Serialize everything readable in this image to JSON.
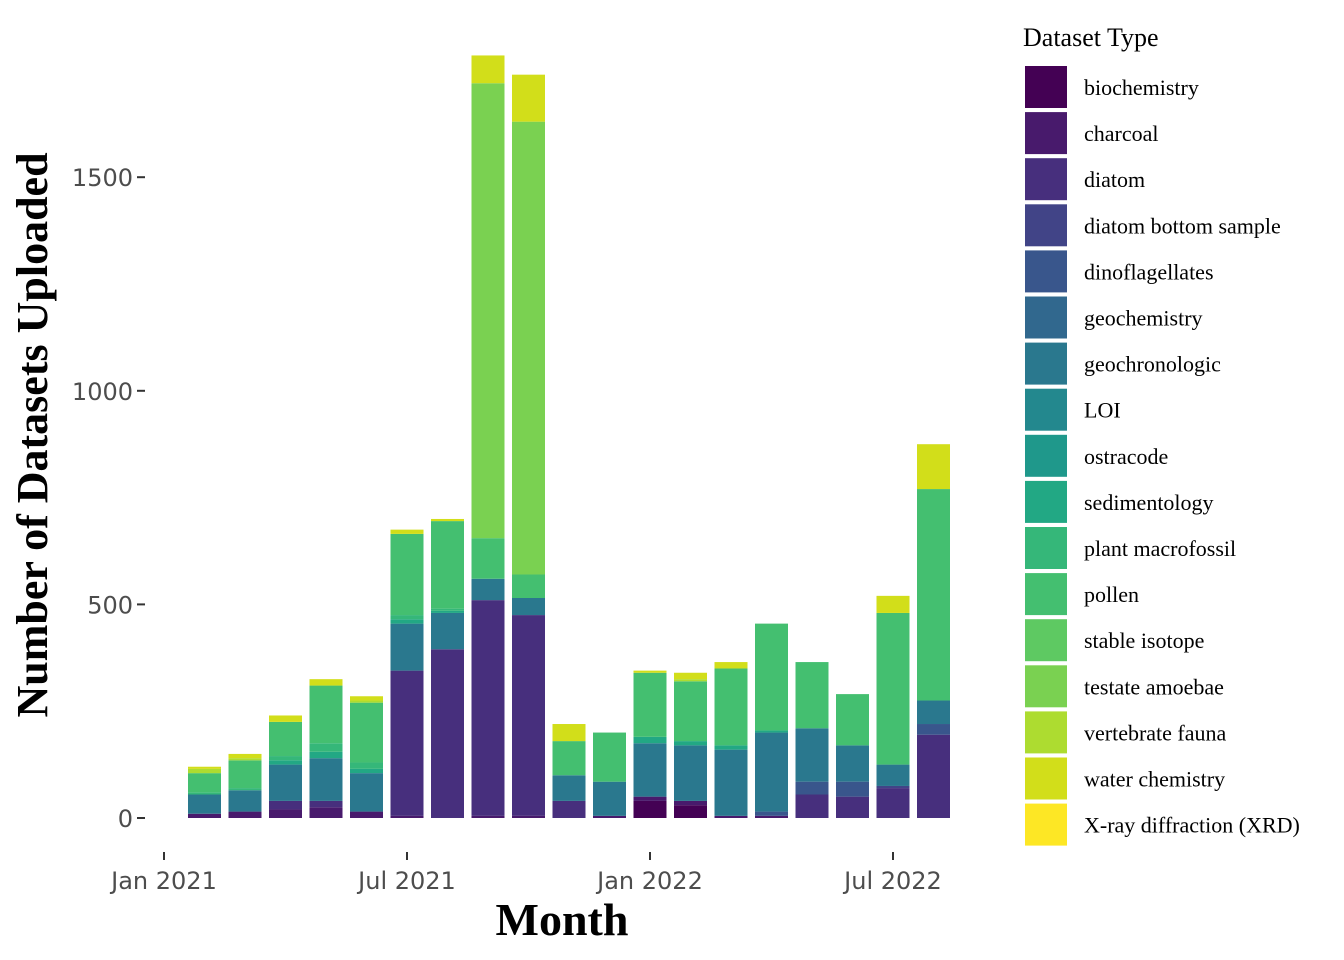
{
  "chart_data": {
    "type": "bar",
    "stacked": true,
    "xlabel": "Month",
    "ylabel": "Number of Datasets Uploaded",
    "ylim": [
      -60,
      1800
    ],
    "y_ticks": [
      0,
      500,
      1000,
      1500
    ],
    "x_ticks": [
      {
        "label": "Jan 2021",
        "date": "2021-01"
      },
      {
        "label": "Jul 2021",
        "date": "2021-07"
      },
      {
        "label": "Jan 2022",
        "date": "2022-01"
      },
      {
        "label": "Jul 2022",
        "date": "2022-07"
      }
    ],
    "categories": [
      "2021-02",
      "2021-03",
      "2021-04",
      "2021-05",
      "2021-06",
      "2021-07",
      "2021-08",
      "2021-09",
      "2021-10",
      "2021-11",
      "2021-12",
      "2022-01",
      "2022-02",
      "2022-03",
      "2022-04",
      "2022-05",
      "2022-06",
      "2022-07",
      "2022-08"
    ],
    "legend": {
      "title": "Dataset Type",
      "position": "right"
    },
    "grid": false,
    "series": [
      {
        "name": "biochemistry",
        "color": "#440154",
        "values": [
          0,
          0,
          0,
          0,
          0,
          0,
          0,
          0,
          0,
          0,
          0,
          40,
          30,
          0,
          0,
          0,
          0,
          0,
          0
        ]
      },
      {
        "name": "charcoal",
        "color": "#481a6c",
        "values": [
          10,
          15,
          20,
          25,
          15,
          5,
          0,
          5,
          5,
          0,
          5,
          10,
          10,
          5,
          5,
          0,
          0,
          0,
          0
        ]
      },
      {
        "name": "diatom",
        "color": "#472f7d",
        "values": [
          0,
          0,
          20,
          15,
          0,
          340,
          395,
          505,
          470,
          40,
          0,
          0,
          0,
          0,
          0,
          55,
          50,
          70,
          195
        ]
      },
      {
        "name": "diatom bottom sample",
        "color": "#414487",
        "values": [
          0,
          0,
          0,
          0,
          0,
          0,
          0,
          0,
          0,
          0,
          0,
          0,
          0,
          0,
          0,
          0,
          0,
          5,
          0
        ]
      },
      {
        "name": "dinoflagellates",
        "color": "#39568c",
        "values": [
          0,
          0,
          0,
          0,
          0,
          0,
          0,
          0,
          0,
          0,
          0,
          0,
          0,
          0,
          10,
          30,
          35,
          0,
          25
        ]
      },
      {
        "name": "geochemistry",
        "color": "#31688e",
        "values": [
          0,
          0,
          0,
          0,
          0,
          0,
          0,
          0,
          0,
          0,
          0,
          0,
          0,
          0,
          0,
          0,
          0,
          0,
          0
        ]
      },
      {
        "name": "geochronologic",
        "color": "#2a788e",
        "values": [
          45,
          50,
          85,
          100,
          90,
          110,
          85,
          50,
          40,
          60,
          80,
          125,
          130,
          155,
          185,
          125,
          85,
          50,
          55
        ]
      },
      {
        "name": "LOI",
        "color": "#23888e",
        "values": [
          0,
          0,
          0,
          0,
          0,
          0,
          0,
          0,
          0,
          0,
          0,
          0,
          0,
          0,
          0,
          0,
          0,
          0,
          0
        ]
      },
      {
        "name": "ostracode",
        "color": "#1f988b",
        "values": [
          0,
          0,
          0,
          0,
          0,
          0,
          0,
          0,
          0,
          0,
          0,
          0,
          0,
          0,
          0,
          0,
          0,
          0,
          0
        ]
      },
      {
        "name": "sedimentology",
        "color": "#22a884",
        "values": [
          0,
          0,
          10,
          15,
          10,
          10,
          5,
          0,
          0,
          0,
          0,
          15,
          10,
          10,
          5,
          0,
          0,
          0,
          0
        ]
      },
      {
        "name": "plant macrofossil",
        "color": "#35b779",
        "values": [
          5,
          5,
          10,
          20,
          15,
          10,
          5,
          0,
          0,
          0,
          0,
          0,
          0,
          0,
          0,
          0,
          0,
          0,
          0
        ]
      },
      {
        "name": "pollen",
        "color": "#44bf70",
        "values": [
          45,
          65,
          80,
          135,
          140,
          190,
          205,
          95,
          55,
          80,
          115,
          150,
          140,
          180,
          250,
          155,
          120,
          355,
          495
        ]
      },
      {
        "name": "stable isotope",
        "color": "#5ec962",
        "values": [
          0,
          0,
          0,
          0,
          0,
          0,
          0,
          0,
          0,
          0,
          0,
          0,
          0,
          0,
          0,
          0,
          0,
          0,
          0
        ]
      },
      {
        "name": "testate amoebae",
        "color": "#7ad151",
        "values": [
          0,
          0,
          0,
          0,
          0,
          0,
          0,
          1065,
          1060,
          0,
          0,
          0,
          0,
          0,
          0,
          0,
          0,
          0,
          0
        ]
      },
      {
        "name": "vertebrate fauna",
        "color": "#addc30",
        "values": [
          10,
          5,
          0,
          0,
          5,
          0,
          0,
          0,
          0,
          0,
          0,
          0,
          5,
          0,
          0,
          0,
          0,
          0,
          0
        ]
      },
      {
        "name": "water chemistry",
        "color": "#d2de1a",
        "values": [
          5,
          10,
          15,
          15,
          10,
          10,
          5,
          65,
          110,
          40,
          0,
          5,
          15,
          15,
          0,
          0,
          0,
          40,
          105
        ]
      },
      {
        "name": "X-ray diffraction (XRD)",
        "color": "#fde725",
        "values": [
          0,
          0,
          0,
          0,
          0,
          0,
          0,
          0,
          0,
          0,
          0,
          0,
          0,
          0,
          0,
          0,
          0,
          0,
          0
        ]
      }
    ]
  }
}
